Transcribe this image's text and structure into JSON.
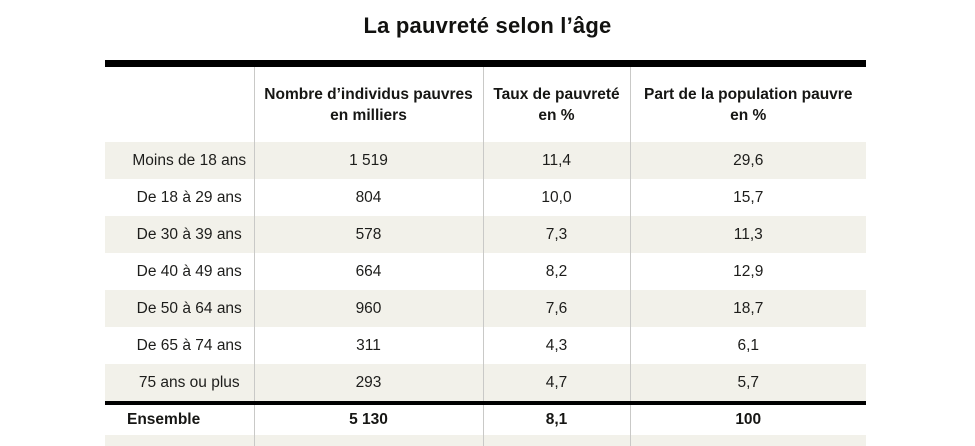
{
  "title": "La pauvreté selon l’âge",
  "table": {
    "headers": [
      {
        "line1": "Nombre d’individus pauvres",
        "line2": "en milliers"
      },
      {
        "line1": "Taux de pauvreté",
        "line2": "en %"
      },
      {
        "line1": "Part de la population pauvre",
        "line2": "en %"
      }
    ],
    "rows": [
      {
        "label": "Moins de 18 ans",
        "nombre": "1 519",
        "taux": "11,4",
        "part": "29,6"
      },
      {
        "label": "De 18 à 29 ans",
        "nombre": "804",
        "taux": "10,0",
        "part": "15,7"
      },
      {
        "label": "De 30 à 39 ans",
        "nombre": "578",
        "taux": "7,3",
        "part": "11,3"
      },
      {
        "label": "De 40 à 49 ans",
        "nombre": "664",
        "taux": "8,2",
        "part": "12,9"
      },
      {
        "label": "De 50 à 64 ans",
        "nombre": "960",
        "taux": "7,6",
        "part": "18,7"
      },
      {
        "label": "De 65 à 74 ans",
        "nombre": "311",
        "taux": "4,3",
        "part": "6,1"
      },
      {
        "label": "75 ans ou plus",
        "nombre": "293",
        "taux": "4,7",
        "part": "5,7"
      }
    ],
    "total": {
      "label": "Ensemble",
      "nombre": "5 130",
      "taux": "8,1",
      "part": "100"
    }
  },
  "colors": {
    "stripe": "#f2f1ea",
    "rule": "#000000",
    "column_separator": "#c9c9c7",
    "text": "#1d1d1b",
    "background": "#ffffff"
  },
  "chart_data": {
    "type": "table",
    "title": "La pauvreté selon l’âge",
    "columns": [
      "",
      "Nombre d’individus pauvres en milliers",
      "Taux de pauvreté en %",
      "Part de la population pauvre en %"
    ],
    "rows": [
      [
        "Moins de 18 ans",
        1519,
        11.4,
        29.6
      ],
      [
        "De 18 à 29 ans",
        804,
        10.0,
        15.7
      ],
      [
        "De 30 à 39 ans",
        578,
        7.3,
        11.3
      ],
      [
        "De 40 à 49 ans",
        664,
        8.2,
        12.9
      ],
      [
        "De 50 à 64 ans",
        960,
        7.6,
        18.7
      ],
      [
        "De 65 à 74 ans",
        311,
        4.3,
        6.1
      ],
      [
        "75 ans ou plus",
        293,
        4.7,
        5.7
      ],
      [
        "Ensemble",
        5130,
        8.1,
        100
      ]
    ],
    "notes": "French data table; decimal commas; striped rows; thick black rules above header and above total row"
  }
}
